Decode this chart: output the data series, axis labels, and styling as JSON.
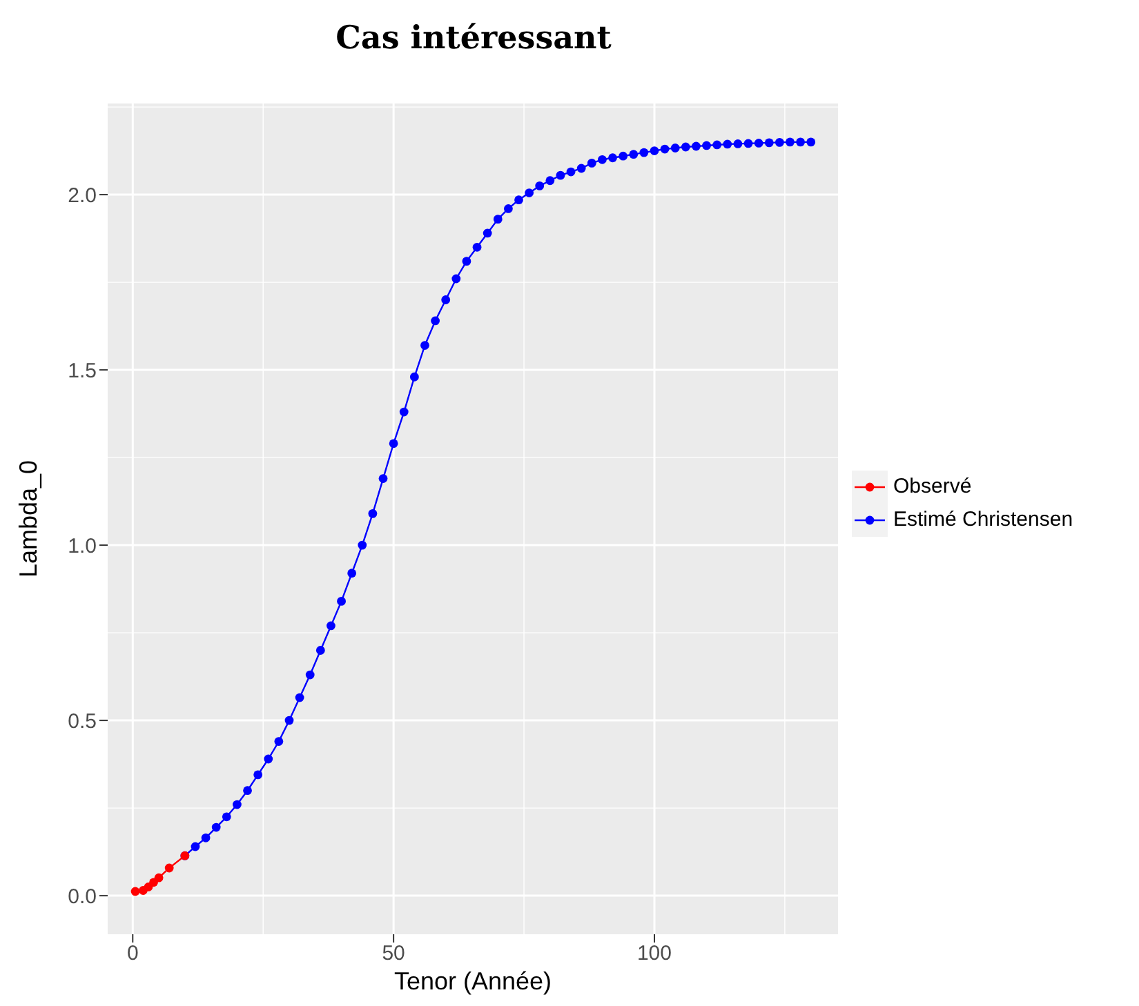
{
  "chart_data": {
    "type": "line",
    "title": "Cas intéressant",
    "xlabel": "Tenor (Année)",
    "ylabel": "Lambda_0",
    "xlim": [
      -4.8,
      135.2
    ],
    "xticks": [
      0,
      50,
      100
    ],
    "ylim": [
      -0.11,
      2.26
    ],
    "yticks": [
      {
        "value": 0,
        "label": "0.0"
      },
      {
        "value": 0.5,
        "label": "0.5"
      },
      {
        "value": 1,
        "label": "1.0"
      },
      {
        "value": 1.5,
        "label": "1.5"
      },
      {
        "value": 2,
        "label": "2.0"
      }
    ],
    "grid": true,
    "legend": "right",
    "marker": "circle",
    "line_style": "solid",
    "series": [
      {
        "name": "Observé",
        "color": "#ff0000",
        "x": [
          0.5,
          2,
          3,
          4,
          5,
          7,
          10
        ],
        "values": [
          0.012,
          0.015,
          0.025,
          0.038,
          0.051,
          0.079,
          0.114
        ]
      },
      {
        "name": "Estimé Christensen",
        "color": "#0000ff",
        "x": [
          10,
          12,
          14,
          16,
          18,
          20,
          22,
          24,
          26,
          28,
          30,
          32,
          34,
          36,
          38,
          40,
          42,
          44,
          46,
          48,
          50,
          52,
          54,
          56,
          58,
          60,
          62,
          64,
          66,
          68,
          70,
          72,
          74,
          76,
          78,
          80,
          82,
          84,
          86,
          88,
          90,
          92,
          94,
          96,
          98,
          100,
          102,
          104,
          106,
          108,
          110,
          112,
          114,
          116,
          118,
          120,
          122,
          124,
          126,
          128,
          130
        ],
        "values": [
          0.114,
          0.14,
          0.165,
          0.195,
          0.225,
          0.26,
          0.3,
          0.345,
          0.39,
          0.44,
          0.5,
          0.565,
          0.63,
          0.7,
          0.77,
          0.84,
          0.92,
          1.0,
          1.09,
          1.19,
          1.29,
          1.38,
          1.48,
          1.57,
          1.64,
          1.7,
          1.76,
          1.81,
          1.85,
          1.89,
          1.93,
          1.96,
          1.985,
          2.005,
          2.025,
          2.04,
          2.055,
          2.065,
          2.075,
          2.09,
          2.1,
          2.105,
          2.11,
          2.115,
          2.12,
          2.125,
          2.13,
          2.133,
          2.136,
          2.138,
          2.14,
          2.142,
          2.144,
          2.145,
          2.146,
          2.147,
          2.148,
          2.149,
          2.15,
          2.15,
          2.15
        ]
      }
    ]
  }
}
